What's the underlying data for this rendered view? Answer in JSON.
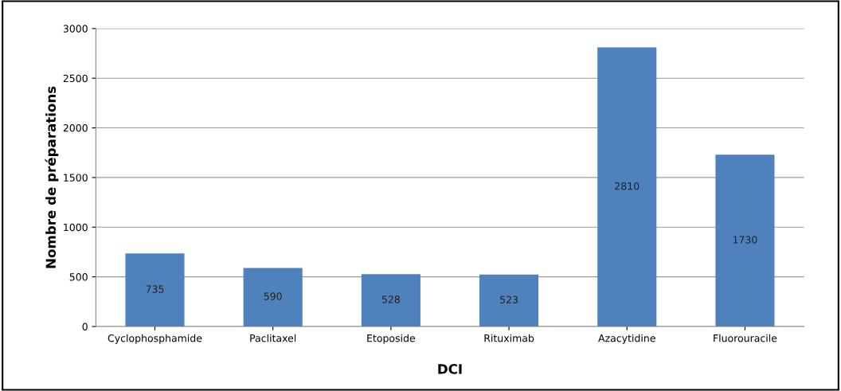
{
  "chart_data": {
    "type": "bar",
    "xlabel": "DCI",
    "ylabel": "Nombre de préparations",
    "categories": [
      "Cyclophosphamide",
      "Paclitaxel",
      "Etoposide",
      "Rituximab",
      "Azacytidine",
      "Fluorouracile"
    ],
    "values": [
      735,
      590,
      528,
      523,
      2810,
      1730
    ],
    "color": "#4f81bd",
    "ylim": [
      0,
      3000
    ],
    "yticks": [
      0,
      500,
      1000,
      1500,
      2000,
      2500,
      3000
    ],
    "grid": "y",
    "data_labels": true,
    "legend": false
  }
}
